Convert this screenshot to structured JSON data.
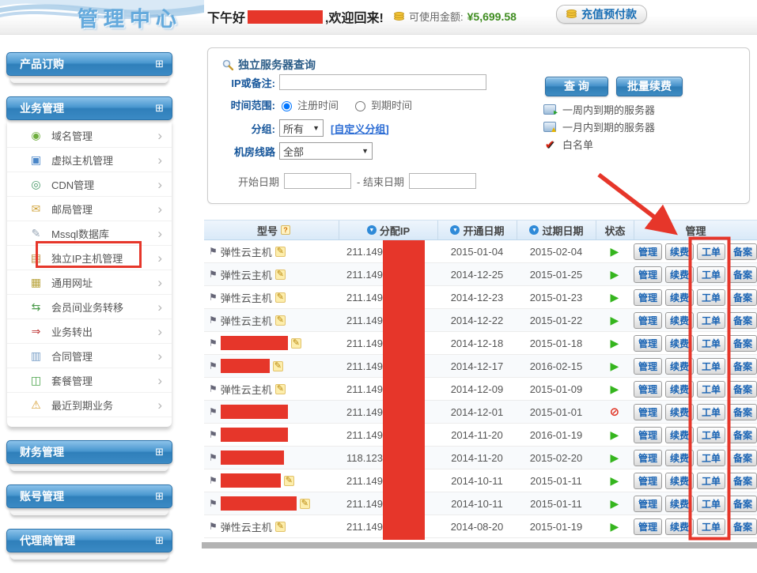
{
  "logo_text": "管理中心",
  "topbar": {
    "greeting_prefix": "下午好",
    "greeting_suffix": ",欢迎回来!",
    "balance_label": "可使用金额:",
    "balance_value": "¥5,699.58",
    "recharge_button": "充值预付款"
  },
  "sidebar": {
    "expand_glyph": "⊞",
    "chevron_glyph": "›",
    "sections": [
      {
        "name": "product-order",
        "label": "产品订购",
        "items": []
      },
      {
        "name": "business-management",
        "label": "业务管理",
        "items": [
          {
            "name": "domain-management",
            "icon_glyph": "◉",
            "icon_color": "#6fae3e",
            "label": "域名管理"
          },
          {
            "name": "virtual-host-management",
            "icon_glyph": "▣",
            "icon_color": "#4a86c8",
            "label": "虚拟主机管理"
          },
          {
            "name": "cdn-management",
            "icon_glyph": "◎",
            "icon_color": "#4a9a6a",
            "label": "CDN管理"
          },
          {
            "name": "mail-management",
            "icon_glyph": "✉",
            "icon_color": "#d0a33a",
            "label": "邮局管理"
          },
          {
            "name": "mssql-database",
            "icon_glyph": "✎",
            "icon_color": "#97a5b5",
            "label": "Mssql数据库"
          },
          {
            "name": "dedicated-ip-host-management",
            "icon_glyph": "▤",
            "icon_color": "#c0934a",
            "label": "独立IP主机管理",
            "selected": true
          },
          {
            "name": "universal-url",
            "icon_glyph": "▦",
            "icon_color": "#b8a23a",
            "label": "通用网址"
          },
          {
            "name": "member-business-transfer",
            "icon_glyph": "⇆",
            "icon_color": "#4a9a4a",
            "label": "会员间业务转移"
          },
          {
            "name": "business-transfer-out",
            "icon_glyph": "⇒",
            "icon_color": "#c03a3a",
            "label": "业务转出"
          },
          {
            "name": "contract-management",
            "icon_glyph": "▥",
            "icon_color": "#7aa0c8",
            "label": "合同管理"
          },
          {
            "name": "package-management",
            "icon_glyph": "◫",
            "icon_color": "#4aa34a",
            "label": "套餐管理"
          },
          {
            "name": "recently-expiring-business",
            "icon_glyph": "⚠",
            "icon_color": "#d8a23a",
            "label": "最近到期业务"
          }
        ]
      },
      {
        "name": "finance-management",
        "label": "财务管理",
        "items": []
      },
      {
        "name": "account-management",
        "label": "账号管理",
        "items": []
      },
      {
        "name": "agent-management",
        "label": "代理商管理",
        "items": []
      }
    ]
  },
  "search_panel": {
    "title": "独立服务器查询",
    "ip_label": "IP或备注:",
    "ip_value": "",
    "time_range_label": "时间范围:",
    "radio_register": "注册时间",
    "radio_expire": "到期时间",
    "group_label": "分组:",
    "group_value": "所有",
    "group_link": "[自定义分组]",
    "line_label": "机房线路",
    "line_value": "全部",
    "start_date_label": "开始日期",
    "end_date_label": "- 结束日期",
    "start_date_value": "",
    "end_date_value": "",
    "query_button": "查 询",
    "batch_renew_button": "批量续费",
    "legend": [
      {
        "name": "expiring-week-icon",
        "label": "一周内到期的服务器"
      },
      {
        "name": "expiring-month-icon",
        "label": "一月内到期的服务器"
      },
      {
        "name": "whitelist-icon",
        "label": "白名单"
      }
    ]
  },
  "table": {
    "columns": {
      "model": "型号",
      "ip": "分配IP",
      "open_date": "开通日期",
      "expire_date": "过期日期",
      "status": "状态",
      "manage": "管理"
    },
    "sort_glyph": "▼",
    "help_glyph": "?",
    "flag_glyph": "⚑",
    "edit_glyph": "✎",
    "status_glyphs": {
      "running": "▶",
      "forbidden": "⊘"
    },
    "action_labels": [
      "管理",
      "续费",
      "工单",
      "备案"
    ],
    "rows": [
      {
        "model": "弹性云主机",
        "redacted": false,
        "edit_icon": true,
        "ip_prefix": "211.149.",
        "open_date": "2015-01-04",
        "expire_date": "2015-02-04",
        "status": "running"
      },
      {
        "model": "弹性云主机",
        "redacted": false,
        "edit_icon": true,
        "ip_prefix": "211.149.",
        "open_date": "2014-12-25",
        "expire_date": "2015-01-25",
        "status": "running"
      },
      {
        "model": "弹性云主机",
        "redacted": false,
        "edit_icon": true,
        "ip_prefix": "211.149.",
        "open_date": "2014-12-23",
        "expire_date": "2015-01-23",
        "status": "running"
      },
      {
        "model": "弹性云主机",
        "redacted": false,
        "edit_icon": true,
        "ip_prefix": "211.149.",
        "open_date": "2014-12-22",
        "expire_date": "2015-01-22",
        "status": "running"
      },
      {
        "model": "",
        "redacted": true,
        "redact_width": 85,
        "edit_icon": true,
        "ip_prefix": "211.149.",
        "open_date": "2014-12-18",
        "expire_date": "2015-01-18",
        "status": "running"
      },
      {
        "model": "",
        "redacted": true,
        "redact_width": 62,
        "edit_icon": true,
        "ip_prefix": "211.149.",
        "open_date": "2014-12-17",
        "expire_date": "2016-02-15",
        "status": "running"
      },
      {
        "model": "弹性云主机",
        "redacted": false,
        "edit_icon": true,
        "ip_prefix": "211.149.",
        "open_date": "2014-12-09",
        "expire_date": "2015-01-09",
        "status": "running"
      },
      {
        "model": "",
        "redacted": true,
        "redact_width": 85,
        "edit_icon": false,
        "ip_prefix": "211.149.",
        "open_date": "2014-12-01",
        "expire_date": "2015-01-01",
        "status": "forbidden"
      },
      {
        "model": "",
        "redacted": true,
        "redact_width": 85,
        "edit_icon": false,
        "ip_prefix": "211.149.",
        "open_date": "2014-11-20",
        "expire_date": "2016-01-19",
        "status": "running"
      },
      {
        "model": "",
        "redacted": true,
        "redact_width": 80,
        "edit_icon": false,
        "ip_prefix": "118.123.",
        "open_date": "2014-11-20",
        "expire_date": "2015-02-20",
        "status": "running"
      },
      {
        "model": "",
        "redacted": true,
        "redact_width": 76,
        "edit_icon": true,
        "ip_prefix": "211.149.",
        "open_date": "2014-10-11",
        "expire_date": "2015-01-11",
        "status": "running"
      },
      {
        "model": "",
        "redacted": true,
        "redact_width": 96,
        "edit_icon": true,
        "ip_prefix": "211.149.",
        "open_date": "2014-10-11",
        "expire_date": "2015-01-11",
        "status": "running"
      },
      {
        "model": "弹性云主机",
        "redacted": false,
        "edit_icon": true,
        "ip_prefix": "211.149.",
        "open_date": "2014-08-20",
        "expire_date": "2015-01-19",
        "status": "running"
      }
    ]
  },
  "colors": {
    "annotation_red": "#e6362a",
    "accent_blue": "#3181bb",
    "status_green": "#35b51e",
    "balance_green": "#3e8c1f"
  }
}
